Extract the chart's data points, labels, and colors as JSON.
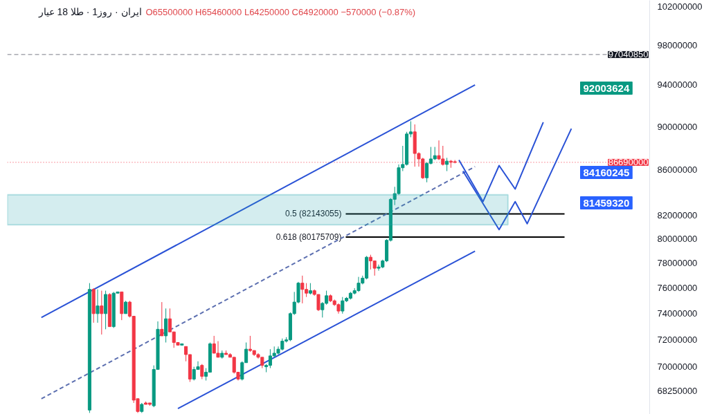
{
  "chart_data": {
    "type": "candlestick",
    "title": "ایران · روز1 · طلا 18 عیار",
    "categories": [
      null,
      null,
      null,
      null,
      null,
      null,
      null,
      null,
      null,
      null,
      null,
      null,
      null,
      null,
      null,
      null,
      null,
      null,
      null,
      null,
      null,
      null,
      null,
      null,
      null,
      null,
      null,
      null,
      null,
      null,
      null,
      null,
      null,
      null,
      null,
      null,
      null,
      null,
      null,
      null,
      null,
      null,
      null,
      null,
      null,
      null,
      null,
      null,
      null,
      null,
      null,
      null,
      null,
      null,
      null,
      null,
      null,
      null,
      null,
      null,
      null,
      null,
      null,
      null,
      null,
      null,
      null,
      null,
      null,
      null,
      null,
      null,
      null,
      null,
      null,
      null,
      null,
      null,
      null,
      null,
      null,
      null,
      null,
      null,
      null,
      null,
      null,
      null,
      null,
      null,
      null,
      null,
      null,
      null,
      null,
      null,
      null,
      null,
      null,
      null,
      null,
      null,
      null,
      null,
      null,
      null,
      null,
      null,
      null,
      null,
      null,
      null,
      null,
      null,
      null,
      null,
      null,
      null,
      null,
      null,
      null,
      null,
      null,
      null,
      null,
      null,
      null,
      null,
      null,
      null,
      null,
      null,
      null,
      null,
      null,
      null,
      null,
      null,
      null,
      null,
      null,
      null,
      null,
      null,
      null,
      null,
      null,
      null,
      null,
      null,
      null,
      null,
      null,
      null,
      null,
      null,
      null,
      null,
      null,
      null
    ],
    "colors": [
      null,
      null,
      null,
      null,
      null,
      null,
      null,
      null,
      null,
      null,
      null,
      null,
      null,
      null,
      null,
      null,
      null,
      null,
      null,
      null,
      "#089981",
      "#f23645",
      "#089981",
      "#f23645",
      "#089981",
      "#f23645",
      "#089981",
      "#089981",
      "#f23645",
      "#089981",
      "#f23645",
      "#f23645",
      "#f23645",
      "#089981",
      "#f23645",
      "#f23645",
      "#089981",
      "#089981",
      "#f23645",
      "#089981",
      "#f23645",
      "#f23645",
      "#f23645",
      "#089981",
      "#f23645",
      "#f23645",
      "#089981",
      "#089981",
      "#f23645",
      "#089981",
      "#089981",
      "#f23645",
      "#f23645",
      "#089981",
      "#f23645",
      "#f23645",
      "#f23645",
      "#f23645",
      "#089981",
      "#089981",
      "#f23645",
      "#f23645",
      "#f23645",
      "#f23645",
      "#089981",
      "#089981",
      "#089981",
      "#089981",
      "#089981",
      "#089981",
      "#089981",
      "#089981",
      "#089981",
      "#f23645",
      "#f23645",
      "#089981",
      "#f23645",
      "#f23645",
      "#089981",
      "#089981",
      "#f23645",
      "#f23645",
      "#f23645",
      "#089981",
      "#089981",
      "#089981",
      "#089981",
      "#089981",
      "#089981",
      "#089981",
      "#f23645",
      "#f23645",
      "#089981",
      "#089981",
      "#089981",
      "#089981",
      "#089981",
      "#089981",
      "#089981",
      "#089981",
      "#089981",
      "#f23645",
      "#f23645",
      "#f23645",
      "#089981",
      "#089981",
      "#089981",
      "#f23645",
      "#f23645",
      "#089981",
      "#f23645",
      "#f23645",
      null,
      null,
      null,
      null,
      null,
      null,
      null,
      null,
      null,
      null,
      null,
      null,
      null,
      null,
      null,
      null,
      null,
      null,
      null,
      null,
      null,
      null,
      null,
      null,
      null,
      null,
      null,
      null,
      null,
      null,
      null,
      null,
      null,
      null,
      null,
      null,
      null,
      null,
      null,
      null,
      null,
      null,
      null,
      null,
      null,
      null,
      null,
      null
    ],
    "ohlc": [
      null,
      null,
      null,
      null,
      null,
      null,
      null,
      null,
      null,
      null,
      null,
      null,
      null,
      null,
      null,
      null,
      null,
      null,
      null,
      null,
      [
        66900000,
        76400000,
        66700000,
        75900000
      ],
      [
        75900000,
        76000000,
        73300000,
        74000000
      ],
      [
        74000000,
        75900000,
        73300000,
        74600000
      ],
      [
        74600000,
        75800000,
        72400000,
        74000000
      ],
      [
        74000000,
        75800000,
        72800000,
        75500000
      ],
      [
        75500000,
        75600000,
        73000000,
        73000000
      ],
      [
        73000000,
        75700000,
        72900000,
        75600000
      ],
      [
        75600000,
        75700000,
        75600000,
        75700000
      ],
      [
        75700000,
        75700000,
        73500000,
        74000000
      ],
      [
        74000000,
        75000000,
        74000000,
        74900000
      ],
      [
        74900000,
        75000000,
        73700000,
        73800000
      ],
      [
        73800000,
        73800000,
        67400000,
        67600000
      ],
      [
        67700000,
        67700000,
        66700000,
        66800000
      ],
      [
        66800000,
        67400000,
        66700000,
        67300000
      ],
      [
        67400000,
        67500000,
        67300000,
        67300000
      ],
      [
        67400000,
        67400000,
        67200000,
        67300000
      ],
      [
        67200000,
        70100000,
        67100000,
        69800000
      ],
      [
        69800000,
        73400000,
        69800000,
        72800000
      ],
      [
        72800000,
        74900000,
        72300000,
        72300000
      ],
      [
        72300000,
        74400000,
        71800000,
        73600000
      ],
      [
        73600000,
        74400000,
        72600000,
        72600000
      ],
      [
        72600000,
        72600000,
        71400000,
        71800000
      ],
      [
        71800000,
        71800000,
        71600000,
        71600000
      ],
      [
        71600000,
        71700000,
        71600000,
        71700000
      ],
      [
        71500000,
        71500000,
        70400000,
        70900000
      ],
      [
        70900000,
        70900000,
        68900000,
        69100000
      ],
      [
        69100000,
        70000000,
        69000000,
        69800000
      ],
      [
        69800000,
        70400000,
        69800000,
        70000000
      ],
      [
        70100000,
        70200000,
        69100000,
        69300000
      ],
      [
        69300000,
        69900000,
        69000000,
        69600000
      ],
      [
        69600000,
        71800000,
        69600000,
        71700000
      ],
      [
        71700000,
        72300000,
        71000000,
        71000000
      ],
      [
        71000000,
        71900000,
        70700000,
        70700000
      ],
      [
        70700000,
        71200000,
        70600000,
        71000000
      ],
      [
        71000000,
        71200000,
        70900000,
        70900000
      ],
      [
        70900000,
        71000000,
        70700000,
        70700000
      ],
      [
        70700000,
        70700000,
        69500000,
        69600000
      ],
      [
        69600000,
        69600000,
        69000000,
        69100000
      ],
      [
        69100000,
        70400000,
        69000000,
        70300000
      ],
      [
        70300000,
        71800000,
        70300000,
        71300000
      ],
      [
        71300000,
        72300000,
        71100000,
        71200000
      ],
      [
        71200000,
        71200000,
        70800000,
        70900000
      ],
      [
        70900000,
        71000000,
        70600000,
        70700000
      ],
      [
        70700000,
        70700000,
        69900000,
        70100000
      ],
      [
        70000000,
        70200000,
        69600000,
        70100000
      ],
      [
        70100000,
        71300000,
        69900000,
        70800000
      ],
      [
        70800000,
        71500000,
        70700000,
        71000000
      ],
      [
        71000000,
        71500000,
        70900000,
        71300000
      ],
      [
        71300000,
        72100000,
        71200000,
        71900000
      ],
      [
        71900000,
        72200000,
        71800000,
        72000000
      ],
      [
        72000000,
        74100000,
        71900000,
        74000000
      ],
      [
        74000000,
        75700000,
        73900000,
        74900000
      ],
      [
        74900000,
        76500000,
        74800000,
        76400000
      ],
      [
        76400000,
        77000000,
        74800000,
        75900000
      ],
      [
        75900000,
        76400000,
        75300000,
        75600000
      ],
      [
        75600000,
        76400000,
        75500000,
        75800000
      ],
      [
        75800000,
        75900000,
        75400000,
        75500000
      ],
      [
        75500000,
        75500000,
        74200000,
        74300000
      ],
      [
        74300000,
        74900000,
        73700000,
        74800000
      ],
      [
        74800000,
        75800000,
        74700000,
        75400000
      ],
      [
        75400000,
        75500000,
        74900000,
        75000000
      ],
      [
        75000000,
        75100000,
        74600000,
        74700000
      ],
      [
        74700000,
        74800000,
        74000000,
        74200000
      ],
      [
        74200000,
        75300000,
        74000000,
        75000000
      ],
      [
        75000000,
        75300000,
        74900000,
        75200000
      ],
      [
        75200000,
        75700000,
        75100000,
        75600000
      ],
      [
        75600000,
        76000000,
        75500000,
        75800000
      ],
      [
        75800000,
        76900000,
        75700000,
        76400000
      ],
      [
        76400000,
        77000000,
        76300000,
        76800000
      ],
      [
        76800000,
        78600000,
        76700000,
        78500000
      ],
      [
        78500000,
        78700000,
        77500000,
        78200000
      ],
      [
        78200000,
        78200000,
        77000000,
        77600000
      ],
      [
        77600000,
        77900000,
        77400000,
        77700000
      ],
      [
        77700000,
        78300000,
        77600000,
        78200000
      ],
      [
        78200000,
        80000000,
        78100000,
        79900000
      ],
      [
        79900000,
        83500000,
        79800000,
        83400000
      ],
      [
        83400000,
        84500000,
        82900000,
        83900000
      ],
      [
        83900000,
        86500000,
        83800000,
        86200000
      ],
      [
        86200000,
        88200000,
        85900000,
        86500000
      ],
      [
        86500000,
        89500000,
        86400000,
        89300000
      ],
      [
        89300000,
        90500000,
        89000000,
        89500000
      ],
      [
        89500000,
        90200000,
        86300000,
        87500000
      ],
      [
        87500000,
        87600000,
        86300000,
        87000000
      ],
      [
        87000000,
        87100000,
        85200000,
        85300000
      ],
      [
        85300000,
        86700000,
        84900000,
        86600000
      ],
      [
        86600000,
        88100000,
        86500000,
        87000000
      ],
      [
        87000000,
        88100000,
        86900000,
        87300000
      ],
      [
        87300000,
        88700000,
        86900000,
        87000000
      ],
      [
        87000000,
        88200000,
        86400000,
        86500000
      ],
      [
        86500000,
        87100000,
        85900000,
        86800000
      ],
      [
        86800000,
        86900000,
        86200000,
        86700000
      ],
      [
        86750000,
        86900000,
        86600000,
        86690000
      ],
      null,
      null,
      null,
      null,
      null,
      null,
      null,
      null,
      null,
      null,
      null,
      null,
      null,
      null,
      null,
      null,
      null,
      null,
      null,
      null,
      null,
      null,
      null,
      null,
      null,
      null,
      null,
      null,
      null,
      null,
      null,
      null,
      null,
      null,
      null,
      null,
      null,
      null,
      null,
      null,
      null,
      null,
      null,
      null,
      null,
      null,
      null,
      null
    ],
    "series": [
      {
        "type": "line",
        "color": "#2a52d6",
        "values": [
          null,
          null,
          null,
          null,
          null,
          null,
          null,
          null,
          73700000,
          null,
          null,
          null,
          null,
          null,
          null,
          null,
          null,
          null,
          null,
          null,
          null,
          null,
          null,
          null,
          null,
          null,
          null,
          null,
          null,
          null,
          null,
          null,
          null,
          null,
          null,
          null,
          null,
          null,
          null,
          null,
          null,
          null,
          null,
          null,
          null,
          null,
          null,
          null,
          null,
          null,
          null,
          null,
          null,
          null,
          null,
          null,
          null,
          null,
          null,
          null,
          null,
          null,
          null,
          null,
          null,
          null,
          null,
          null,
          null,
          null,
          null,
          null,
          null,
          null,
          null,
          null,
          null,
          null,
          null,
          null,
          null,
          null,
          null,
          null,
          null,
          null,
          null,
          null,
          null,
          null,
          null,
          null,
          null,
          null,
          null,
          null,
          null,
          null,
          null,
          null,
          null,
          null,
          null,
          null,
          null,
          null,
          null,
          null,
          null,
          null,
          null,
          null,
          null,
          null,
          null,
          null,
          94000000,
          null,
          null,
          null,
          null,
          null,
          null,
          null,
          null,
          null,
          null,
          null,
          null,
          null,
          null,
          null,
          null,
          null,
          null,
          null,
          null,
          null,
          null,
          null,
          null,
          null,
          null,
          null,
          null,
          null,
          null,
          null,
          null,
          null,
          null,
          null,
          null,
          null,
          null,
          null,
          null,
          null,
          null,
          null
        ]
      },
      {
        "type": "line",
        "color": "#2a52d6",
        "values": [
          null,
          null,
          null,
          null,
          null,
          null,
          null,
          null,
          null,
          null,
          null,
          null,
          null,
          null,
          null,
          null,
          null,
          null,
          null,
          null,
          null,
          null,
          null,
          null,
          null,
          null,
          null,
          null,
          null,
          null,
          null,
          null,
          null,
          null,
          null,
          null,
          null,
          null,
          null,
          null,
          null,
          null,
          67000000,
          null,
          null,
          null,
          null,
          null,
          null,
          null,
          null,
          null,
          null,
          null,
          null,
          null,
          null,
          null,
          null,
          null,
          null,
          null,
          null,
          null,
          null,
          null,
          null,
          null,
          null,
          null,
          null,
          null,
          null,
          null,
          null,
          null,
          null,
          null,
          null,
          null,
          null,
          null,
          null,
          null,
          null,
          null,
          null,
          null,
          null,
          null,
          null,
          null,
          null,
          null,
          null,
          null,
          null,
          null,
          null,
          null,
          null,
          null,
          null,
          null,
          null,
          null,
          null,
          null,
          null,
          null,
          null,
          null,
          null,
          null,
          null,
          null,
          79000000,
          null,
          null,
          null,
          null,
          null,
          null,
          null,
          null,
          null,
          null,
          null,
          null,
          null,
          null,
          null,
          null,
          null,
          null,
          null,
          null,
          null,
          null,
          null,
          null,
          null,
          null,
          null,
          null,
          null,
          null,
          null,
          null,
          null,
          null,
          null,
          null,
          null,
          null,
          null,
          null,
          null,
          null,
          null
        ]
      },
      {
        "type": "line",
        "color": "#5c6fb0",
        "line_style": "dashed",
        "values": [
          null,
          null,
          null,
          null,
          null,
          null,
          null,
          null,
          67700000,
          null,
          null,
          null,
          null,
          null,
          null,
          null,
          null,
          null,
          null,
          null,
          null,
          null,
          null,
          null,
          null,
          null,
          null,
          null,
          null,
          null,
          null,
          null,
          null,
          null,
          null,
          null,
          null,
          null,
          null,
          null,
          null,
          null,
          null,
          null,
          null,
          null,
          null,
          null,
          null,
          null,
          null,
          null,
          null,
          null,
          null,
          null,
          null,
          null,
          null,
          null,
          null,
          null,
          null,
          null,
          null,
          null,
          null,
          null,
          null,
          null,
          null,
          null,
          null,
          null,
          null,
          null,
          null,
          null,
          null,
          null,
          null,
          null,
          null,
          null,
          null,
          null,
          null,
          null,
          null,
          null,
          null,
          null,
          null,
          null,
          null,
          null,
          null,
          null,
          null,
          null,
          null,
          null,
          null,
          null,
          null,
          null,
          null,
          null,
          null,
          null,
          null,
          null,
          null,
          null,
          null,
          null,
          86300000,
          null,
          null,
          null,
          null,
          null,
          null,
          null,
          null,
          null,
          null,
          null,
          null,
          null,
          null,
          null,
          null,
          null,
          null,
          null,
          null,
          null,
          null,
          null,
          null,
          null,
          null,
          null,
          null,
          null,
          null,
          null,
          null,
          null,
          null,
          null,
          null,
          null,
          null,
          null,
          null,
          null,
          null,
          null
        ]
      },
      {
        "type": "line",
        "color": "#2a52d6",
        "values": [
          null,
          null,
          null,
          null,
          null,
          null,
          null,
          null,
          null,
          null,
          null,
          null,
          null,
          null,
          null,
          null,
          null,
          null,
          null,
          null,
          null,
          null,
          null,
          null,
          null,
          null,
          null,
          null,
          null,
          null,
          null,
          null,
          null,
          null,
          null,
          null,
          null,
          null,
          null,
          null,
          null,
          null,
          null,
          null,
          null,
          null,
          null,
          null,
          null,
          null,
          null,
          null,
          null,
          null,
          null,
          null,
          null,
          null,
          null,
          null,
          null,
          null,
          null,
          null,
          null,
          null,
          null,
          null,
          null,
          null,
          null,
          null,
          null,
          null,
          null,
          null,
          null,
          null,
          null,
          null,
          null,
          null,
          null,
          null,
          null,
          null,
          null,
          null,
          null,
          null,
          null,
          null,
          null,
          null,
          null,
          null,
          null,
          null,
          null,
          null,
          null,
          null,
          null,
          null,
          null,
          null,
          null,
          null,
          null,
          null,
          null,
          null,
          86900000,
          null,
          null,
          null,
          null,
          null,
          83200000,
          null,
          null,
          null,
          86400000,
          null,
          null,
          null,
          84300000,
          null,
          null,
          null,
          null,
          null,
          null,
          90400000,
          null,
          null,
          null,
          null,
          null,
          null,
          null,
          null,
          null,
          null,
          null,
          null,
          null,
          null,
          null,
          null,
          null,
          null,
          null,
          null,
          null,
          null,
          null,
          null,
          null,
          null
        ]
      },
      {
        "type": "line",
        "color": "#2a52d6",
        "values": [
          null,
          null,
          null,
          null,
          null,
          null,
          null,
          null,
          null,
          null,
          null,
          null,
          null,
          null,
          null,
          null,
          null,
          null,
          null,
          null,
          null,
          null,
          null,
          null,
          null,
          null,
          null,
          null,
          null,
          null,
          null,
          null,
          null,
          null,
          null,
          null,
          null,
          null,
          null,
          null,
          null,
          null,
          null,
          null,
          null,
          null,
          null,
          null,
          null,
          null,
          null,
          null,
          null,
          null,
          null,
          null,
          null,
          null,
          null,
          null,
          null,
          null,
          null,
          null,
          null,
          null,
          null,
          null,
          null,
          null,
          null,
          null,
          null,
          null,
          null,
          null,
          null,
          null,
          null,
          null,
          null,
          null,
          null,
          null,
          null,
          null,
          null,
          null,
          null,
          null,
          null,
          null,
          null,
          null,
          null,
          null,
          null,
          null,
          null,
          null,
          null,
          null,
          null,
          null,
          null,
          null,
          null,
          null,
          null,
          null,
          null,
          null,
          null,
          85900000,
          null,
          null,
          null,
          null,
          null,
          null,
          null,
          null,
          80800000,
          null,
          null,
          null,
          83200000,
          null,
          null,
          81300000,
          null,
          null,
          null,
          null,
          null,
          null,
          null,
          null,
          null,
          null,
          89800000,
          null,
          null,
          null,
          null,
          null,
          null,
          null,
          null,
          null,
          null,
          null,
          null,
          null,
          null,
          null,
          null,
          null,
          null,
          null
        ]
      }
    ],
    "log": "y",
    "ylim": [
      66600000,
      102700000
    ],
    "yticks": [
      102000000,
      98000000,
      94000000,
      90000000,
      86000000,
      82000000,
      80000000,
      78000000,
      76000000,
      74000000,
      72000000,
      70000000,
      68250000
    ],
    "ref_lines": [
      {
        "axis": "y",
        "value": 97040850,
        "label": "97040850",
        "color": "#787b86",
        "line_style": "dashed"
      },
      {
        "axis": "y",
        "value": 86690000,
        "label": "86690000",
        "color": "#f23645",
        "line_style": "dotted"
      },
      {
        "axis": "y",
        "value": 82143055,
        "label": "0.5 (82143055)",
        "color": "#000000"
      },
      {
        "axis": "y",
        "value": 80175709,
        "label": "0.618 (80175709)",
        "color": "#000000"
      }
    ],
    "bands": [
      {
        "axis": "y",
        "from": 81200000,
        "to": 83800000,
        "color": "#26a6b0"
      }
    ],
    "annotations": [
      "O65500000 H65460000 L64250000 C64920000 −570000 (−0.87%)",
      "92003624",
      "84160245",
      "81459320"
    ]
  }
}
